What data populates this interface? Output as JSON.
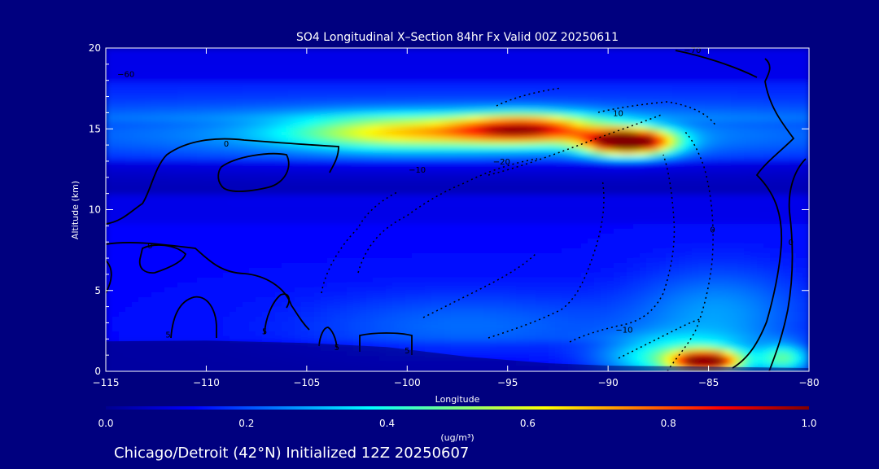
{
  "chart_data": {
    "type": "heatmap",
    "title": "SO4 Longitudinal X–Section 84hr  Fx Valid 00Z 20250611",
    "subtitle": "Chicago/Detroit (42°N) Initialized 12Z 20250607",
    "xlabel": "Longitude",
    "ylabel": "Altitude (km)",
    "xlim": [
      -115,
      -80
    ],
    "ylim": [
      0,
      20
    ],
    "x_ticks": [
      -115,
      -110,
      -105,
      -100,
      -95,
      -90,
      -85,
      -80
    ],
    "x_tick_labels": [
      "−115",
      "−110",
      "−105",
      "−100",
      "−95",
      "−90",
      "−85",
      "−80"
    ],
    "y_ticks": [
      0,
      5,
      10,
      15,
      20
    ],
    "y_tick_labels": [
      "0",
      "5",
      "10",
      "15",
      "20"
    ],
    "colorbar": {
      "label": "(ug/m³)",
      "range": [
        0.0,
        1.0
      ],
      "ticks": [
        0.0,
        0.2,
        0.4,
        0.6,
        0.8,
        1.0
      ],
      "tick_labels": [
        "0.0",
        "0.2",
        "0.4",
        "0.6",
        "0.8",
        "1.0"
      ],
      "colors": [
        "#00008f",
        "#0000ff",
        "#0080ff",
        "#00ffff",
        "#80ff80",
        "#ffff00",
        "#ff8000",
        "#ff0000",
        "#800000"
      ]
    },
    "features": [
      {
        "name": "upper-plume-west",
        "x": -100,
        "y": 14.8,
        "sx": 4.0,
        "sy": 0.7,
        "amp": 0.4
      },
      {
        "name": "upper-plume-mid",
        "x": -94,
        "y": 15.0,
        "sx": 2.4,
        "sy": 0.6,
        "amp": 0.62
      },
      {
        "name": "upper-plume-core",
        "x": -89,
        "y": 14.2,
        "sx": 1.5,
        "sy": 0.55,
        "amp": 1.0
      },
      {
        "name": "upper-band",
        "x": -97.5,
        "y": 14.6,
        "sx": 20.0,
        "sy": 1.3,
        "amp": 0.18
      },
      {
        "name": "surface-core",
        "x": -85.1,
        "y": 0.6,
        "sx": 1.1,
        "sy": 0.45,
        "amp": 0.78
      },
      {
        "name": "surface-glow",
        "x": -86.5,
        "y": 0.8,
        "sx": 2.6,
        "sy": 0.9,
        "amp": 0.32
      },
      {
        "name": "surface-east",
        "x": -81.2,
        "y": 0.8,
        "sx": 0.9,
        "sy": 0.6,
        "amp": 0.3
      },
      {
        "name": "mid-east",
        "x": -84.5,
        "y": 3.6,
        "sx": 3.0,
        "sy": 2.0,
        "amp": 0.14
      },
      {
        "name": "lowlevel-mid",
        "x": -97,
        "y": 2.8,
        "sx": 6.0,
        "sy": 1.5,
        "amp": 0.1
      }
    ],
    "temperature_contour_labels": [
      {
        "text": "0",
        "x": -112.8,
        "y": 7.6
      },
      {
        "text": "5",
        "x": -111.9,
        "y": 2.1
      },
      {
        "text": "5",
        "x": -107.1,
        "y": 2.3
      },
      {
        "text": "5",
        "x": -103.5,
        "y": 1.3
      },
      {
        "text": "5",
        "x": -100.0,
        "y": 1.1
      },
      {
        "text": "0",
        "x": -109.0,
        "y": 13.9
      },
      {
        "text": "10",
        "x": -89.5,
        "y": 15.8
      },
      {
        "text": "−10",
        "x": -99.5,
        "y": 12.3
      },
      {
        "text": "−20",
        "x": -95.3,
        "y": 12.8
      },
      {
        "text": "−10",
        "x": -89.2,
        "y": 2.4
      },
      {
        "text": "0",
        "x": -84.8,
        "y": 8.6
      },
      {
        "text": "0",
        "x": -80.9,
        "y": 7.8
      },
      {
        "text": "−60",
        "x": -114.0,
        "y": 18.2
      },
      {
        "text": "−70",
        "x": -85.8,
        "y": 19.7
      }
    ],
    "terrain": [
      [
        -115,
        1.85
      ],
      [
        -110,
        1.9
      ],
      [
        -105,
        1.75
      ],
      [
        -101,
        1.5
      ],
      [
        -97,
        0.9
      ],
      [
        -93,
        0.5
      ],
      [
        -90,
        0.35
      ],
      [
        -86,
        0.3
      ],
      [
        -80,
        0.2
      ]
    ],
    "grid": false
  }
}
